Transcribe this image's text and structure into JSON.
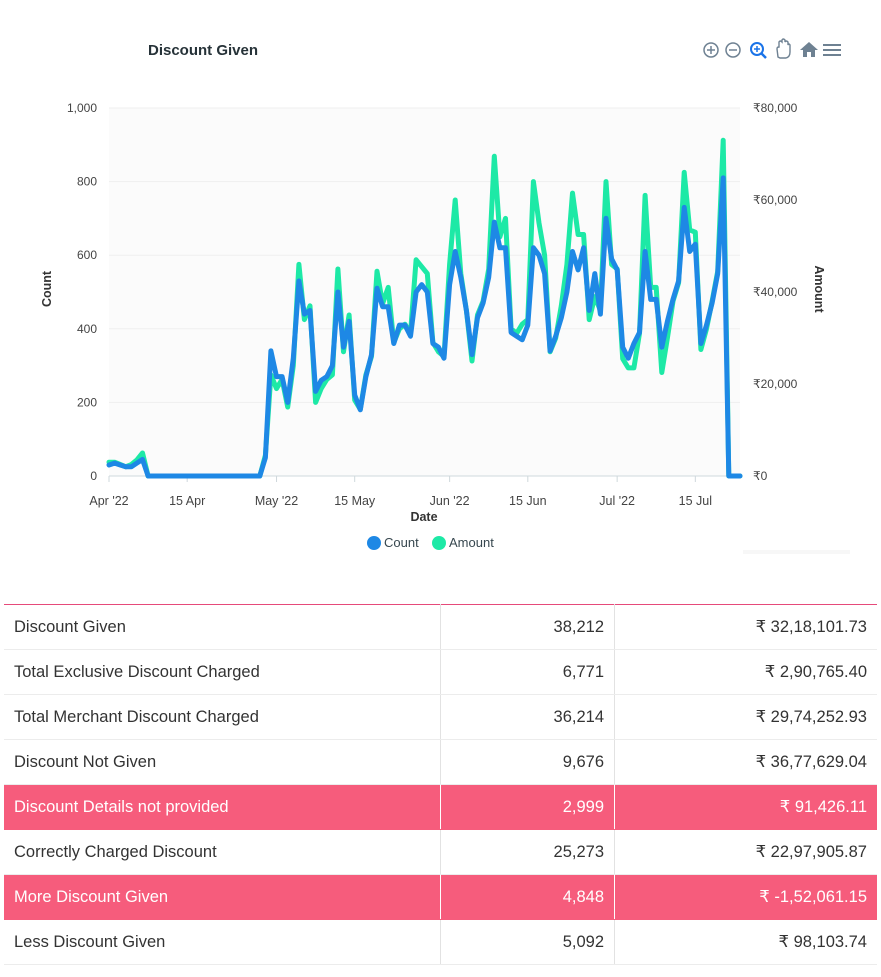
{
  "toolbar": {
    "icons": [
      "zoom-in-icon",
      "zoom-out-icon",
      "zoom-selection-icon",
      "pan-hand-icon",
      "home-reset-icon",
      "menu-icon"
    ],
    "active_color": "#1a73e8",
    "icon_color": "#6e8192"
  },
  "chart_data": {
    "type": "line",
    "title": "Discount Given",
    "xlabel": "Date",
    "ylabel": "Count",
    "y2label": "Amount",
    "ylim": [
      0,
      1000
    ],
    "y2lim": [
      0,
      80000
    ],
    "y_ticks": [
      "0",
      "200",
      "400",
      "600",
      "800",
      "1,000"
    ],
    "y2_ticks": [
      "₹0",
      "₹20,000",
      "₹40,000",
      "₹60,000",
      "₹80,000"
    ],
    "x_tick_labels": [
      "Apr '22",
      "15 Apr",
      "May '22",
      "15 May",
      "Jun '22",
      "15 Jun",
      "Jul '22",
      "15 Jul"
    ],
    "x_tick_days": [
      0,
      14,
      30,
      44,
      61,
      75,
      91,
      105
    ],
    "x_start": "2022-04-01",
    "grid": true,
    "legend": "bottom-center",
    "series": [
      {
        "name": "Count",
        "axis": "left",
        "color": "#1e88e5",
        "values": [
          30,
          35,
          30,
          25,
          25,
          35,
          45,
          0,
          0,
          0,
          0,
          0,
          0,
          0,
          0,
          0,
          0,
          0,
          0,
          0,
          0,
          0,
          0,
          0,
          0,
          0,
          0,
          0,
          50,
          340,
          270,
          270,
          200,
          320,
          530,
          440,
          450,
          230,
          260,
          270,
          300,
          500,
          350,
          420,
          220,
          180,
          270,
          330,
          510,
          460,
          460,
          360,
          410,
          410,
          380,
          500,
          520,
          500,
          360,
          350,
          320,
          520,
          610,
          540,
          450,
          330,
          430,
          470,
          540,
          690,
          620,
          620,
          390,
          380,
          370,
          410,
          620,
          600,
          550,
          340,
          380,
          430,
          500,
          610,
          560,
          620,
          450,
          550,
          440,
          700,
          590,
          560,
          350,
          320,
          360,
          390,
          610,
          480,
          480,
          350,
          420,
          480,
          530,
          730,
          610,
          630,
          360,
          410,
          470,
          550,
          810,
          0,
          0,
          0
        ]
      },
      {
        "name": "Amount",
        "axis": "right",
        "color": "#1de9a6",
        "values": [
          3000,
          3000,
          2500,
          2000,
          2500,
          3500,
          5000,
          0,
          0,
          0,
          0,
          0,
          0,
          0,
          0,
          0,
          0,
          0,
          0,
          0,
          0,
          0,
          0,
          0,
          0,
          0,
          0,
          0,
          4500,
          22000,
          19000,
          21000,
          15000,
          24000,
          46000,
          34000,
          37000,
          16000,
          19000,
          21000,
          22000,
          45000,
          27000,
          35000,
          16500,
          14500,
          22000,
          26000,
          44500,
          37500,
          41000,
          29000,
          32000,
          33000,
          31000,
          47000,
          45500,
          44000,
          29000,
          27000,
          26000,
          46000,
          60000,
          44000,
          36000,
          25000,
          35000,
          38000,
          45000,
          69500,
          52000,
          56000,
          32000,
          31000,
          33000,
          34000,
          64000,
          55000,
          48000,
          27000,
          30000,
          37000,
          46000,
          61500,
          52500,
          52500,
          34000,
          39000,
          36000,
          64000,
          46000,
          45000,
          25500,
          23500,
          23500,
          31000,
          61000,
          41000,
          41000,
          22500,
          30000,
          38000,
          42000,
          66000,
          53500,
          53000,
          27500,
          32000,
          38000,
          44500,
          73000,
          0,
          0,
          0
        ]
      }
    ]
  },
  "table": {
    "rows": [
      {
        "label": "Discount Given",
        "count": "38,212",
        "amount": "₹ 32,18,101.73",
        "highlight": false
      },
      {
        "label": "Total Exclusive Discount Charged",
        "count": "6,771",
        "amount": "₹ 2,90,765.40",
        "highlight": false
      },
      {
        "label": "Total Merchant Discount Charged",
        "count": "36,214",
        "amount": "₹ 29,74,252.93",
        "highlight": false
      },
      {
        "label": "Discount Not Given",
        "count": "9,676",
        "amount": "₹ 36,77,629.04",
        "highlight": false
      },
      {
        "label": "Discount Details not provided",
        "count": "2,999",
        "amount": "₹ 91,426.11",
        "highlight": true
      },
      {
        "label": "Correctly Charged Discount",
        "count": "25,273",
        "amount": "₹ 22,97,905.87",
        "highlight": false
      },
      {
        "label": "More Discount Given",
        "count": "4,848",
        "amount": "₹ -1,52,061.15",
        "highlight": true
      },
      {
        "label": "Less Discount Given",
        "count": "5,092",
        "amount": "₹ 98,103.74",
        "highlight": false
      }
    ],
    "highlight_color": "#f65c7c"
  }
}
